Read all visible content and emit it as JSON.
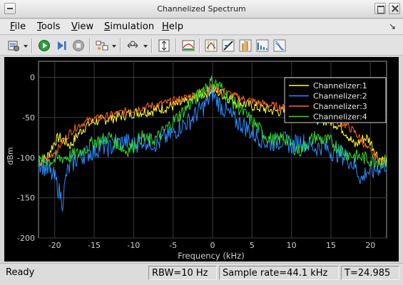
{
  "window": {
    "title": "Channelized Spectrum"
  },
  "menu": [
    {
      "label": "File",
      "mnemonic": "F",
      "rest": "ile"
    },
    {
      "label": "Tools",
      "mnemonic": "T",
      "rest": "ools"
    },
    {
      "label": "View",
      "mnemonic": "V",
      "rest": "iew"
    },
    {
      "label": "Simulation",
      "mnemonic": "S",
      "rest": "imulation"
    },
    {
      "label": "Help",
      "mnemonic": "H",
      "rest": "elp"
    }
  ],
  "toolbar": {
    "icons": [
      "settings-icon",
      "run-icon",
      "step-forward-icon",
      "stop-icon",
      "signal-selector-icon",
      "zoom-icon",
      "scale-axes-icon",
      "spectrum-style-icon",
      "cursor-measurements-icon",
      "signal-statistics-icon",
      "peak-finder-icon",
      "distortion-icon",
      "ccdf-icon"
    ]
  },
  "chart_data": {
    "type": "line",
    "title": "",
    "xlabel": "Frequency (kHz)",
    "ylabel": "dBm",
    "xlim": [
      -22.05,
      22.05
    ],
    "ylim": [
      -200,
      20
    ],
    "xticks": [
      "-20",
      "-15",
      "-10",
      "-5",
      "0",
      "5",
      "10",
      "15",
      "20"
    ],
    "xtick_values": [
      -20,
      -15,
      -10,
      -5,
      0,
      5,
      10,
      15,
      20
    ],
    "yticks": [
      "0",
      "-50",
      "-100",
      "-150",
      "-200"
    ],
    "ytick_values": [
      0,
      -50,
      -100,
      -150,
      -200
    ],
    "grid": true,
    "legend_position": "top-right",
    "background": "#000000",
    "series": [
      {
        "name": "Channelizer:1",
        "color": "#ffff33",
        "x": [
          -22,
          -21,
          -20.5,
          -20,
          -19.5,
          -19,
          -18,
          -17,
          -16,
          -15,
          -14,
          -12,
          -10,
          -8,
          -6,
          -4,
          -3,
          -2,
          -1,
          0,
          1,
          2,
          3,
          4,
          6,
          8,
          10,
          12,
          14,
          15,
          16,
          17,
          18,
          19,
          19.5,
          20,
          20.5,
          21,
          22
        ],
        "y": [
          -105,
          -100,
          -90,
          -80,
          -75,
          -77,
          -85,
          -70,
          -60,
          -55,
          -53,
          -49,
          -44,
          -42,
          -38,
          -33,
          -30,
          -25,
          -20,
          -15,
          -20,
          -25,
          -30,
          -33,
          -38,
          -42,
          -44,
          -49,
          -53,
          -55,
          -60,
          -70,
          -85,
          -77,
          -75,
          -80,
          -90,
          -100,
          -105
        ]
      },
      {
        "name": "Channelizer:2",
        "color": "#2b8cff",
        "x": [
          -22,
          -21,
          -20,
          -19.5,
          -19,
          -18.5,
          -18,
          -17,
          -16,
          -15,
          -14,
          -13,
          -12,
          -11,
          -10,
          -9,
          -8,
          -7,
          -6,
          -5,
          -4,
          -3,
          -2,
          -1,
          0,
          1,
          2,
          3,
          4,
          5,
          6,
          7,
          8,
          9,
          10,
          11,
          12,
          13,
          14,
          15,
          16,
          17,
          18,
          18.5,
          19,
          19.5,
          20,
          21,
          22
        ],
        "y": [
          -105,
          -115,
          -125,
          -140,
          -155,
          -120,
          -110,
          -100,
          -95,
          -92,
          -85,
          -88,
          -82,
          -80,
          -85,
          -78,
          -80,
          -83,
          -75,
          -70,
          -60,
          -55,
          -45,
          -35,
          -20,
          -35,
          -45,
          -55,
          -60,
          -70,
          -75,
          -83,
          -80,
          -78,
          -85,
          -80,
          -82,
          -88,
          -85,
          -92,
          -95,
          -100,
          -110,
          -120,
          -128,
          -115,
          -120,
          -112,
          -108
        ]
      },
      {
        "name": "Channelizer:3",
        "color": "#ff6a2a",
        "x": [
          -22,
          -21,
          -20.5,
          -20,
          -19.5,
          -19,
          -18,
          -17,
          -16,
          -15,
          -14,
          -12,
          -10,
          -8,
          -6,
          -4,
          -3,
          -2,
          -1,
          0,
          1,
          2,
          3,
          4,
          6,
          8,
          10,
          12,
          14,
          15,
          16,
          17,
          18,
          19,
          19.5,
          20,
          20.5,
          21,
          22
        ],
        "y": [
          -106,
          -103,
          -98,
          -92,
          -88,
          -80,
          -68,
          -60,
          -55,
          -52,
          -50,
          -45,
          -40,
          -36,
          -32,
          -27,
          -24,
          -20,
          -15,
          -12,
          -15,
          -20,
          -24,
          -27,
          -32,
          -36,
          -40,
          -45,
          -50,
          -52,
          -55,
          -60,
          -68,
          -80,
          -88,
          -92,
          -98,
          -103,
          -106
        ]
      },
      {
        "name": "Channelizer:4",
        "color": "#33dd33",
        "x": [
          -22,
          -21,
          -20,
          -19,
          -18,
          -17,
          -16,
          -15,
          -14,
          -13,
          -12,
          -11,
          -10,
          -9,
          -8,
          -7,
          -6,
          -5,
          -4,
          -3,
          -2,
          -1,
          0,
          1,
          2,
          3,
          4,
          5,
          6,
          7,
          8,
          9,
          10,
          11,
          12,
          13,
          14,
          15,
          16,
          17,
          18,
          19,
          20,
          21,
          22
        ],
        "y": [
          -105,
          -104,
          -103,
          -100,
          -98,
          -95,
          -88,
          -80,
          -78,
          -74,
          -82,
          -92,
          -85,
          -74,
          -80,
          -75,
          -65,
          -55,
          -45,
          -35,
          -25,
          -12,
          -5,
          -12,
          -25,
          -35,
          -45,
          -55,
          -65,
          -75,
          -80,
          -74,
          -85,
          -92,
          -82,
          -74,
          -78,
          -80,
          -88,
          -95,
          -98,
          -100,
          -103,
          -104,
          -105
        ]
      }
    ]
  },
  "status": {
    "state": "Ready",
    "rbw": "RBW=10 Hz",
    "sample_rate": "Sample rate=44.1 kHz",
    "time": "T=24.985"
  }
}
